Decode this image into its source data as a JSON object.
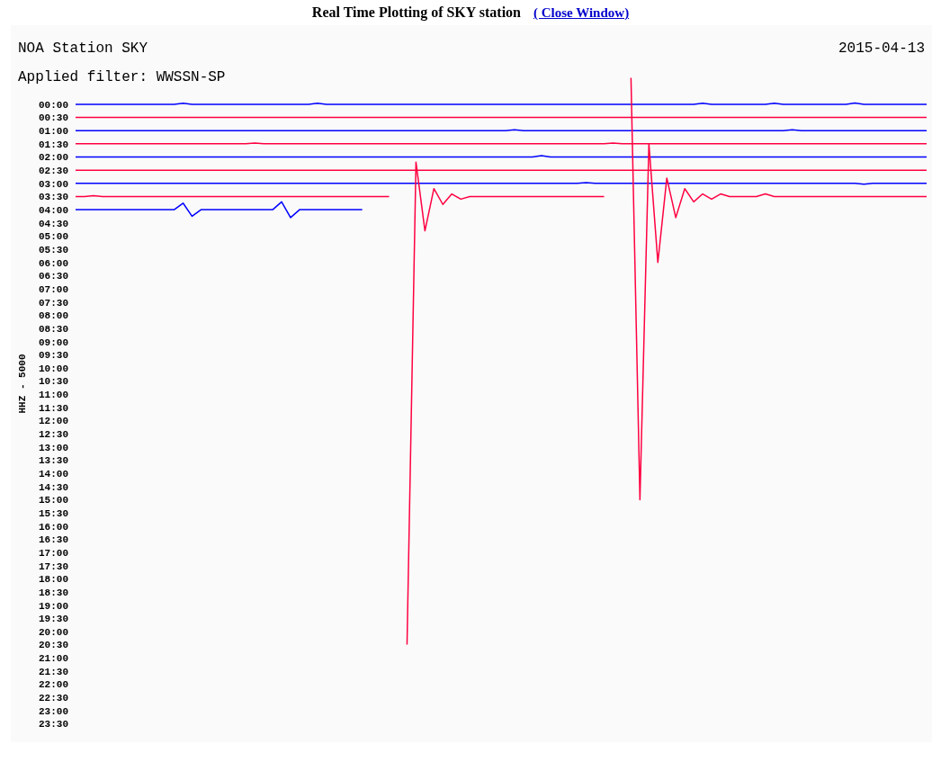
{
  "chart_data": {
    "type": "line",
    "title": "Real Time Plotting of SKY station",
    "ylabel": "HHZ - 5000",
    "annotations": [
      "NOA Station SKY",
      "Applied filter: WWSSN-SP",
      "2015-04-13",
      "( Close Window)"
    ],
    "categories": [
      null,
      null,
      null,
      null,
      null,
      null,
      null,
      null,
      null,
      null,
      null,
      null,
      null,
      null,
      null,
      null,
      null,
      null,
      null,
      null,
      null,
      null,
      null,
      null,
      null,
      null,
      null,
      null,
      null,
      null,
      null,
      null,
      null,
      null,
      null,
      null,
      null,
      null,
      null,
      null,
      null,
      null,
      null,
      null,
      null,
      null,
      null,
      null,
      null,
      null,
      null,
      null,
      null,
      null,
      null,
      null,
      null,
      null,
      null,
      null,
      null,
      null,
      null,
      null,
      null,
      null,
      null,
      null,
      null,
      null,
      null,
      null,
      null,
      null,
      null,
      null,
      null,
      null,
      null,
      null,
      null,
      null,
      null,
      null,
      null,
      null,
      null,
      null,
      null,
      null,
      null,
      null,
      null,
      null,
      null,
      null
    ],
    "ylim": [
      24.2,
      -3
    ],
    "yticks": [
      {
        "value": 0,
        "label": "00:00"
      },
      {
        "value": 0.5,
        "label": "00:30"
      },
      {
        "value": 1,
        "label": "01:00"
      },
      {
        "value": 1.5,
        "label": "01:30"
      },
      {
        "value": 2,
        "label": "02:00"
      },
      {
        "value": 2.5,
        "label": "02:30"
      },
      {
        "value": 3,
        "label": "03:00"
      },
      {
        "value": 3.5,
        "label": "03:30"
      },
      {
        "value": 4,
        "label": "04:00"
      },
      {
        "value": 4.5,
        "label": "04:30"
      },
      {
        "value": 5,
        "label": "05:00"
      },
      {
        "value": 5.5,
        "label": "05:30"
      },
      {
        "value": 6,
        "label": "06:00"
      },
      {
        "value": 6.5,
        "label": "06:30"
      },
      {
        "value": 7,
        "label": "07:00"
      },
      {
        "value": 7.5,
        "label": "07:30"
      },
      {
        "value": 8,
        "label": "08:00"
      },
      {
        "value": 8.5,
        "label": "08:30"
      },
      {
        "value": 9,
        "label": "09:00"
      },
      {
        "value": 9.5,
        "label": "09:30"
      },
      {
        "value": 10,
        "label": "10:00"
      },
      {
        "value": 10.5,
        "label": "10:30"
      },
      {
        "value": 11,
        "label": "11:00"
      },
      {
        "value": 11.5,
        "label": "11:30"
      },
      {
        "value": 12,
        "label": "12:00"
      },
      {
        "value": 12.5,
        "label": "12:30"
      },
      {
        "value": 13,
        "label": "13:00"
      },
      {
        "value": 13.5,
        "label": "13:30"
      },
      {
        "value": 14,
        "label": "14:00"
      },
      {
        "value": 14.5,
        "label": "14:30"
      },
      {
        "value": 15,
        "label": "15:00"
      },
      {
        "value": 15.5,
        "label": "15:30"
      },
      {
        "value": 16,
        "label": "16:00"
      },
      {
        "value": 16.5,
        "label": "16:30"
      },
      {
        "value": 17,
        "label": "17:00"
      },
      {
        "value": 17.5,
        "label": "17:30"
      },
      {
        "value": 18,
        "label": "18:00"
      },
      {
        "value": 18.5,
        "label": "18:30"
      },
      {
        "value": 19,
        "label": "19:00"
      },
      {
        "value": 19.5,
        "label": "19:30"
      },
      {
        "value": 20,
        "label": "20:00"
      },
      {
        "value": 20.5,
        "label": "20:30"
      },
      {
        "value": 21,
        "label": "21:00"
      },
      {
        "value": 21.5,
        "label": "21:30"
      },
      {
        "value": 22,
        "label": "22:00"
      },
      {
        "value": 22.5,
        "label": "22:30"
      },
      {
        "value": 23,
        "label": "23:00"
      },
      {
        "value": 23.5,
        "label": "23:30"
      }
    ],
    "tick_labels": "y",
    "marker": "none",
    "series": [
      {
        "color": "#0000ff",
        "values": [
          0,
          0,
          0,
          0,
          0,
          0,
          0,
          0,
          0,
          0,
          0,
          0,
          -0.04,
          0,
          0,
          0,
          0,
          0,
          0,
          0,
          0,
          0,
          0,
          0,
          0,
          0,
          0,
          -0.04,
          0,
          0,
          0,
          0,
          0,
          0,
          0,
          0,
          0,
          0,
          0,
          0,
          0,
          0,
          0,
          0,
          0,
          0,
          0,
          0,
          0,
          0,
          0,
          0,
          0,
          0,
          0,
          0,
          0,
          0,
          0,
          0,
          0,
          0,
          0,
          0,
          0,
          0,
          0,
          0,
          0,
          0,
          -0.04,
          0,
          0,
          0,
          0,
          0,
          0,
          0,
          -0.04,
          0,
          0,
          0,
          0,
          0,
          0,
          0,
          0,
          -0.05,
          0,
          0,
          0,
          0,
          0,
          0,
          0,
          0
        ]
      },
      {
        "color": "#ff0040",
        "values": [
          0.5,
          0.5,
          0.5,
          0.5,
          0.5,
          0.5,
          0.5,
          0.5,
          0.5,
          0.5,
          0.5,
          0.5,
          0.5,
          0.5,
          0.5,
          0.5,
          0.5,
          0.5,
          0.5,
          0.5,
          0.5,
          0.5,
          0.5,
          0.5,
          0.5,
          0.5,
          0.5,
          0.5,
          0.5,
          0.5,
          0.5,
          0.5,
          0.5,
          0.5,
          0.5,
          0.5,
          0.5,
          0.5,
          0.5,
          0.5,
          0.5,
          0.5,
          0.5,
          0.5,
          0.5,
          0.5,
          0.5,
          0.5,
          0.5,
          0.5,
          0.5,
          0.5,
          0.5,
          0.5,
          0.5,
          0.5,
          0.5,
          0.5,
          0.5,
          0.5,
          0.5,
          0.5,
          0.5,
          0.5,
          0.5,
          0.5,
          0.5,
          0.5,
          0.5,
          0.5,
          0.5,
          0.5,
          0.5,
          0.5,
          0.5,
          0.5,
          0.5,
          0.5,
          0.5,
          0.5,
          0.5,
          0.5,
          0.5,
          0.5,
          0.5,
          0.5,
          0.5,
          0.5,
          0.5,
          0.5,
          0.5,
          0.5,
          0.5,
          0.5,
          0.5,
          0.5
        ]
      },
      {
        "color": "#0000ff",
        "values": [
          1,
          1,
          1,
          1,
          1,
          1,
          1,
          1,
          1,
          1,
          1,
          1,
          1,
          1,
          1,
          1,
          1,
          1,
          1,
          1,
          1,
          1,
          1,
          1,
          1,
          1,
          1,
          1,
          1,
          1,
          1,
          1,
          1,
          1,
          1,
          1,
          1,
          1,
          1,
          1,
          1,
          1,
          1,
          1,
          1,
          1,
          1,
          1,
          1,
          0.97,
          1,
          1,
          1,
          1,
          1,
          1,
          1,
          1,
          1,
          1,
          1,
          1,
          1,
          1,
          1,
          1,
          1,
          1,
          1,
          1,
          1,
          1,
          1,
          1,
          1,
          1,
          1,
          1,
          1,
          1,
          0.97,
          1,
          1,
          1,
          1,
          1,
          1,
          1,
          1,
          1,
          1,
          1,
          1,
          1,
          1,
          1
        ]
      },
      {
        "color": "#ff0040",
        "values": [
          1.5,
          1.5,
          1.5,
          1.5,
          1.5,
          1.5,
          1.5,
          1.5,
          1.5,
          1.5,
          1.5,
          1.5,
          1.5,
          1.5,
          1.5,
          1.5,
          1.5,
          1.5,
          1.5,
          1.5,
          1.47,
          1.5,
          1.5,
          1.5,
          1.5,
          1.5,
          1.5,
          1.5,
          1.5,
          1.5,
          1.5,
          1.5,
          1.5,
          1.5,
          1.5,
          1.5,
          1.5,
          1.5,
          1.5,
          1.5,
          1.5,
          1.5,
          1.5,
          1.5,
          1.5,
          1.5,
          1.5,
          1.5,
          1.5,
          1.5,
          1.5,
          1.5,
          1.5,
          1.5,
          1.5,
          1.5,
          1.5,
          1.5,
          1.5,
          1.5,
          1.47,
          1.5,
          1.5,
          1.5,
          1.5,
          1.5,
          1.5,
          1.5,
          1.5,
          1.5,
          1.5,
          1.5,
          1.5,
          1.5,
          1.5,
          1.5,
          1.5,
          1.5,
          1.5,
          1.5,
          1.5,
          1.5,
          1.5,
          1.5,
          1.5,
          1.5,
          1.5,
          1.5,
          1.5,
          1.5,
          1.5,
          1.5,
          1.5,
          1.5,
          1.5,
          1.5
        ]
      },
      {
        "color": "#0000ff",
        "values": [
          2,
          2,
          2,
          2,
          2,
          2,
          2,
          2,
          2,
          2,
          2,
          2,
          2,
          2,
          2,
          2,
          2,
          2,
          2,
          2,
          2,
          2,
          2,
          2,
          2,
          2,
          2,
          2,
          2,
          2,
          2,
          2,
          2,
          2,
          2,
          2,
          2,
          2,
          2,
          2,
          2,
          2,
          2,
          2,
          2,
          2,
          2,
          2,
          2,
          2,
          2,
          2,
          1.95,
          2,
          2,
          2,
          2,
          2,
          2,
          2,
          2,
          2,
          2,
          2,
          2,
          2,
          2,
          2,
          2,
          2,
          2,
          2,
          2,
          2,
          2,
          2,
          2,
          2,
          2,
          2,
          2,
          2,
          2,
          2,
          2,
          2,
          2,
          2,
          2,
          2,
          2,
          2,
          2,
          2,
          2,
          2
        ]
      },
      {
        "color": "#ff0040",
        "values": [
          2.5,
          2.5,
          2.5,
          2.5,
          2.5,
          2.5,
          2.5,
          2.5,
          2.5,
          2.5,
          2.5,
          2.5,
          2.5,
          2.5,
          2.5,
          2.5,
          2.5,
          2.5,
          2.5,
          2.5,
          2.5,
          2.5,
          2.5,
          2.5,
          2.5,
          2.5,
          2.5,
          2.5,
          2.5,
          2.5,
          2.5,
          2.5,
          2.5,
          2.5,
          2.5,
          2.5,
          2.5,
          2.5,
          2.5,
          2.5,
          2.5,
          2.5,
          2.5,
          2.5,
          2.5,
          2.5,
          2.5,
          2.5,
          2.5,
          2.5,
          2.5,
          2.5,
          2.5,
          2.5,
          2.5,
          2.5,
          2.5,
          2.5,
          2.5,
          2.5,
          2.5,
          2.5,
          2.5,
          2.5,
          2.5,
          2.5,
          2.5,
          2.5,
          2.5,
          2.5,
          2.5,
          2.5,
          2.5,
          2.5,
          2.5,
          2.5,
          2.5,
          2.5,
          2.5,
          2.5,
          2.5,
          2.5,
          2.5,
          2.5,
          2.5,
          2.5,
          2.5,
          2.5,
          2.5,
          2.5,
          2.5,
          2.5,
          2.5,
          2.5,
          2.5,
          2.5
        ]
      },
      {
        "color": "#0000ff",
        "values": [
          3,
          3,
          3,
          3,
          3,
          3,
          3,
          3,
          3,
          3,
          3,
          3,
          3,
          3,
          3,
          3,
          3,
          3,
          3,
          3,
          3,
          3,
          3,
          3,
          3,
          3,
          3,
          3,
          3,
          3,
          3,
          3,
          3,
          3,
          3,
          3,
          3,
          3,
          3,
          3,
          3,
          3,
          3,
          3,
          3,
          3,
          3,
          3,
          3,
          3,
          3,
          3,
          3,
          3,
          3,
          3,
          3,
          2.97,
          3,
          3,
          3,
          3,
          3,
          3,
          3,
          3,
          3,
          3,
          3,
          3,
          3,
          3,
          3,
          3,
          3,
          3,
          3,
          3,
          3,
          3,
          3,
          3,
          3,
          3,
          3,
          3,
          3,
          3,
          3.03,
          3,
          3,
          3,
          3,
          3,
          3,
          3
        ]
      },
      {
        "color": "#ff0040",
        "values": [
          3.5,
          3.5,
          3.47,
          3.5,
          3.5,
          3.5,
          3.5,
          3.5,
          3.5,
          3.5,
          3.5,
          3.5,
          3.5,
          3.5,
          3.5,
          3.5,
          3.5,
          3.5,
          3.5,
          3.5,
          3.5,
          3.5,
          3.5,
          3.5,
          3.5,
          3.5,
          3.5,
          3.5,
          3.5,
          3.5,
          3.5,
          3.5,
          3.5,
          3.5,
          3.5,
          3.5,
          null,
          20.5,
          2.2,
          4.8,
          3.2,
          3.8,
          3.4,
          3.6,
          3.5,
          3.5,
          3.5,
          3.5,
          3.5,
          3.5,
          3.5,
          3.5,
          3.5,
          3.5,
          3.5,
          3.5,
          3.5,
          3.5,
          3.5,
          3.5,
          null,
          null,
          -1,
          15,
          1.5,
          6,
          2.8,
          4.3,
          3.2,
          3.7,
          3.4,
          3.6,
          3.4,
          3.5,
          3.5,
          3.5,
          3.5,
          3.4,
          3.5,
          3.5,
          3.5,
          3.5,
          3.5,
          3.5,
          3.5,
          3.5,
          3.5,
          3.5,
          3.5,
          3.5,
          3.5,
          3.5,
          3.5,
          3.5,
          3.5,
          3.5
        ]
      },
      {
        "color": "#0000ff",
        "values": [
          4,
          4,
          4,
          4,
          4,
          4,
          4,
          4,
          4,
          4,
          4,
          4,
          3.75,
          4.25,
          4,
          4,
          4,
          4,
          4,
          4,
          4,
          4,
          4,
          3.7,
          4.3,
          4,
          4,
          4,
          4,
          4,
          4,
          4,
          4,
          null,
          null,
          null,
          null,
          null,
          null,
          null,
          null,
          null,
          null,
          null,
          null,
          null,
          null,
          null,
          null,
          null,
          null,
          null,
          null,
          null,
          null,
          null,
          null,
          null,
          null,
          null,
          null,
          null,
          null,
          null,
          null,
          null,
          null,
          null,
          null,
          null,
          null,
          null,
          null,
          null,
          null,
          null,
          null,
          null,
          null,
          null,
          null,
          null,
          null,
          null,
          null,
          null,
          null,
          null,
          null,
          null,
          null,
          null,
          null,
          null,
          null,
          null
        ]
      }
    ]
  }
}
